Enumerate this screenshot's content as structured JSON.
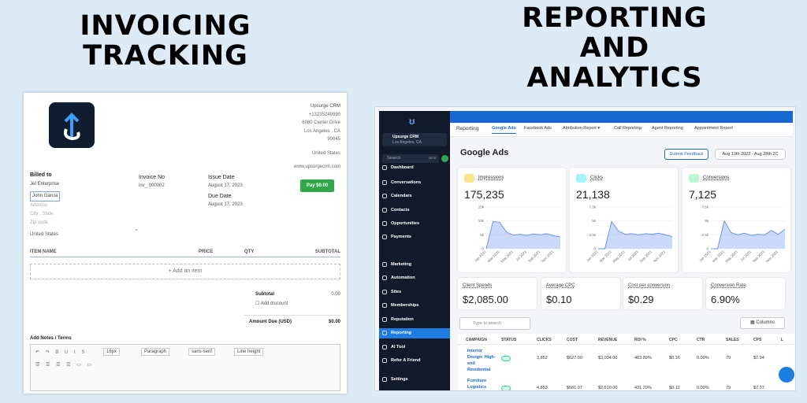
{
  "titles": {
    "left": [
      "INVOICING",
      "TRACKING"
    ],
    "right": [
      "REPORTING",
      "AND",
      "ANALYTICS"
    ]
  },
  "invoice": {
    "company": [
      "Upsurge CRM",
      "+13235249990",
      "6080 Center Drive",
      "Los Angeles , CA",
      "90045",
      "United States",
      "www.upsurgecrm.com"
    ],
    "billed_to_label": "Billed to",
    "billed_to": [
      "Jet Enterprise",
      "John Garcia",
      "Address",
      "City , State",
      "Zip code",
      "United States"
    ],
    "invoice_no_label": "Invoice No",
    "invoice_no": "inv_ 000002",
    "issue_date_label": "Issue Date",
    "issue_date": "August 17, 2023",
    "due_date_label": "Due Date",
    "due_date": "August 17, 2023",
    "pay_button": "Pay $0.00",
    "columns": [
      "ITEM NAME",
      "PRICE",
      "QTY",
      "SUBTOTAL"
    ],
    "add_item": "Add an item",
    "subtotal_label": "Subtotal",
    "subtotal": "0.00",
    "add_discount": "Add discount",
    "amount_due_label": "Amount Due (USD)",
    "amount_due": "$0.00",
    "notes_label": "Add Notes / Terms",
    "toolbar": [
      "16px",
      "Paragraph",
      "sans-serif",
      "Line height"
    ]
  },
  "dashboard": {
    "location": [
      "Upsurge CRM",
      "Los Angeles, CA"
    ],
    "search": "Search",
    "search_key": "ctrl K",
    "sidebar": [
      "Dashboard",
      "Conversations",
      "Calendars",
      "Contacts",
      "Opportunities",
      "Payments",
      "Marketing",
      "Automation",
      "Sites",
      "Memberships",
      "Reputation",
      "Reporting",
      "AI Tool",
      "Refer A Friend",
      "Settings"
    ],
    "active_item": 11,
    "tabs": [
      "Reporting",
      "Google Ads",
      "Facebook Ads",
      "Attribution Report ▾",
      "Call Reporting",
      "Agent Reporting",
      "Appointment Report"
    ],
    "active_tab": 1,
    "heading": "Google Ads",
    "submit_feedback": "Submit Feedback",
    "date_range": "Aug 13th 2023 - Aug 28th 2C",
    "chart_color": "#6b93f0",
    "cards": [
      {
        "label": "Impressions",
        "value": "175,235",
        "ylim": [
          0,
          15000
        ],
        "yticks": [
          {
            "value": 0,
            "label": "0"
          },
          {
            "value": 5000,
            "label": "5k"
          },
          {
            "value": 10000,
            "label": "10k"
          },
          {
            "value": 15000,
            "label": "15k"
          }
        ],
        "categories": [
          "Jan 2021",
          null,
          "Mar 2021",
          null,
          "May 2021",
          null,
          "Jul 2021",
          null,
          "Sep 2021",
          null,
          "Nov 2021",
          null
        ],
        "values": [
          0,
          9800,
          9500,
          6000,
          4900,
          5200,
          4800,
          5300,
          5000,
          5400,
          4700,
          4200
        ]
      },
      {
        "label": "Clicks",
        "value": "21,138",
        "ylim": [
          0,
          7500
        ],
        "yticks": [
          {
            "value": 0,
            "label": "0"
          },
          {
            "value": 2500,
            "label": "2.5k"
          },
          {
            "value": 5000,
            "label": "5k"
          },
          {
            "value": 7500,
            "label": "7.5k"
          }
        ],
        "categories": [
          "Jan 2021",
          null,
          "Mar 2021",
          null,
          "May 2021",
          null,
          "Jul 2021",
          null,
          "Sep 2021",
          null,
          "Nov 2021",
          null
        ],
        "values": [
          0,
          0,
          4900,
          3200,
          2600,
          2700,
          2500,
          2700,
          2600,
          2800,
          2500,
          2200
        ]
      },
      {
        "label": "Conversions",
        "value": "7,125",
        "ylim": [
          0,
          7500
        ],
        "yticks": [
          {
            "value": 0,
            "label": "0"
          },
          {
            "value": 2500,
            "label": "2.5k"
          },
          {
            "value": 5000,
            "label": "5k"
          },
          {
            "value": 7500,
            "label": "7.5k"
          }
        ],
        "categories": [
          "Jan 2021",
          null,
          "Mar 2021",
          null,
          "May 2021",
          null,
          "Jul 2021",
          null,
          "Sep 2021",
          null,
          "Nov 2021",
          null
        ],
        "values": [
          0,
          0,
          5000,
          2900,
          2500,
          2800,
          2400,
          2600,
          2500,
          3300,
          2600,
          3500
        ]
      }
    ],
    "metrics": [
      {
        "label": "Client Spends",
        "value": "$2,085.00"
      },
      {
        "label": "Average CPC",
        "value": "$0.10"
      },
      {
        "label": "Cost per conversion",
        "value": "$0.29"
      },
      {
        "label": "Conversion Rate",
        "value": "6.90%"
      }
    ],
    "table_search": "Type to search",
    "columns_button": "Columns",
    "table": {
      "header": [
        "CAMPAIGN",
        "STATUS",
        "CLICKS",
        "COST",
        "REVENUE",
        "ROI %",
        "CPC",
        "CTR",
        "SALES",
        "CPS",
        "L"
      ],
      "rows": [
        [
          "Interior Design: High-end Residential",
          "3,852",
          "$627.00",
          "$3,034.00",
          "483.89%",
          "$0.16",
          "0.00%",
          "79",
          "$7.94"
        ],
        [
          "Furniture Logistics",
          "4,853",
          "$581.97",
          "$2,510.00",
          "431.29%",
          "$0.12",
          "0.00%",
          "79",
          "$7.37"
        ]
      ]
    }
  }
}
